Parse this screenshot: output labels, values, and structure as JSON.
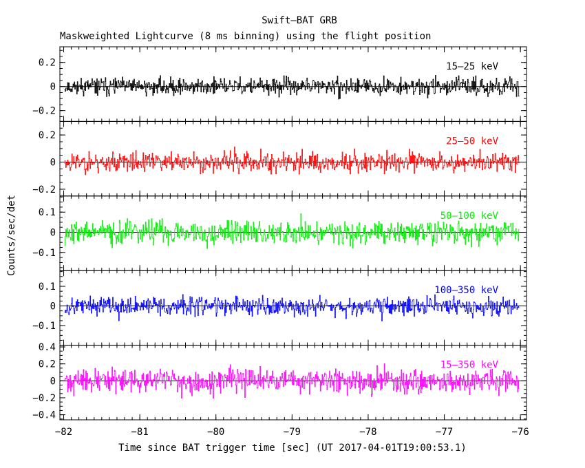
{
  "chart_data": {
    "type": "line",
    "title": "Swift–BAT GRB",
    "subtitle": "Maskweighted Lightcurve (8 ms binning) using the flight position",
    "xlabel": "Time since BAT trigger time [sec] (UT 2017-04-01T19:00:53.1)",
    "ylabel": "Counts/sec/det",
    "xlim": [
      -82.05,
      -75.92
    ],
    "x_ticks": [
      -82,
      -81,
      -80,
      -79,
      -78,
      -77,
      -76
    ],
    "x_tick_labels": [
      "−82",
      "−81",
      "−80",
      "−79",
      "−78",
      "−77",
      "−76"
    ],
    "bin_seconds": 0.008,
    "grid": false,
    "panels": [
      {
        "name": "15-25 keV",
        "label": "15–25 keV",
        "color": "#000000",
        "ylim": [
          -0.29,
          0.33
        ],
        "y_ticks": [
          -0.2,
          0,
          0.2
        ],
        "y_tick_labels": [
          "−0.2",
          "0",
          "0.2"
        ],
        "amplitude": 0.065,
        "seed": 11
      },
      {
        "name": "25-50 keV",
        "label": "25–50 keV",
        "color": "#ff0000",
        "ylim": [
          -0.25,
          0.3
        ],
        "y_ticks": [
          -0.2,
          0,
          0.2
        ],
        "y_tick_labels": [
          "−0.2",
          "0",
          "0.2"
        ],
        "amplitude": 0.07,
        "seed": 23
      },
      {
        "name": "50-100 keV",
        "label": "50–100 keV",
        "color": "#00ee00",
        "ylim": [
          -0.19,
          0.18
        ],
        "y_ticks": [
          -0.1,
          0,
          0.1
        ],
        "y_tick_labels": [
          "−0.1",
          "0",
          "0.1"
        ],
        "amplitude": 0.055,
        "seed": 37
      },
      {
        "name": "100-350 keV",
        "label": "100–350 keV",
        "color": "#0000ff",
        "ylim": [
          -0.2,
          0.18
        ],
        "y_ticks": [
          -0.1,
          0,
          0.1
        ],
        "y_tick_labels": [
          "−0.1",
          "0",
          "0.1"
        ],
        "amplitude": 0.045,
        "seed": 53
      },
      {
        "name": "15-350 keV",
        "label": "15–350 keV",
        "color": "#ff00ff",
        "ylim": [
          -0.46,
          0.42
        ],
        "y_ticks": [
          -0.4,
          -0.2,
          0,
          0.2,
          0.4
        ],
        "y_tick_labels": [
          "−0.4",
          "−0.2",
          "0",
          "0.2",
          "0.4"
        ],
        "amplitude": 0.13,
        "seed": 71
      }
    ]
  }
}
